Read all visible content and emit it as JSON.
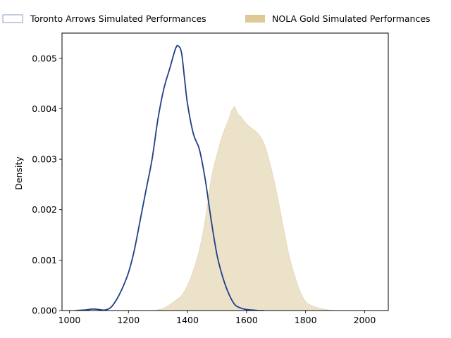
{
  "chart_data": {
    "type": "area",
    "xlabel": "",
    "ylabel": "Density",
    "xlim": [
      975,
      2080
    ],
    "ylim": [
      0,
      0.0055
    ],
    "xticks": [
      1000,
      1200,
      1400,
      1600,
      1800,
      2000
    ],
    "yticks": [
      0.0,
      0.001,
      0.002,
      0.003,
      0.004,
      0.005
    ],
    "ytick_labels": [
      "0.000",
      "0.001",
      "0.002",
      "0.003",
      "0.004",
      "0.005"
    ],
    "grid": false,
    "legend_position": "top",
    "series": [
      {
        "name": "Toronto Arrows Simulated Performances",
        "style": "line",
        "color": "#1f3f86",
        "legend_swatch_edge": "#8a9ac4",
        "x": [
          1020,
          1050,
          1080,
          1100,
          1120,
          1140,
          1160,
          1180,
          1200,
          1220,
          1240,
          1260,
          1280,
          1300,
          1320,
          1340,
          1360,
          1370,
          1380,
          1390,
          1400,
          1420,
          1440,
          1460,
          1480,
          1500,
          1520,
          1540,
          1560,
          1580,
          1600,
          1620,
          1640,
          1660
        ],
        "y": [
          0.0,
          1e-05,
          3e-05,
          2e-05,
          1e-05,
          6e-05,
          0.00022,
          0.00045,
          0.00075,
          0.0012,
          0.0018,
          0.0024,
          0.003,
          0.0038,
          0.0044,
          0.0048,
          0.0052,
          0.00524,
          0.0051,
          0.0046,
          0.0041,
          0.0035,
          0.0032,
          0.0026,
          0.0018,
          0.0011,
          0.00065,
          0.00033,
          0.00012,
          5e-05,
          2e-05,
          1e-05,
          0.0,
          0.0
        ]
      },
      {
        "name": "NOLA Gold Simulated Performances",
        "style": "area",
        "color": "#c9ab66",
        "fill_opacity": 0.35,
        "legend_swatch_fill": "#ddc896",
        "x": [
          1290,
          1320,
          1340,
          1360,
          1380,
          1400,
          1420,
          1440,
          1460,
          1480,
          1500,
          1520,
          1540,
          1550,
          1560,
          1570,
          1580,
          1600,
          1620,
          1640,
          1660,
          1680,
          1700,
          1720,
          1740,
          1760,
          1780,
          1800,
          1820,
          1840,
          1860,
          1880,
          1900
        ],
        "y": [
          0.0,
          5e-05,
          0.00012,
          0.0002,
          0.0003,
          0.0005,
          0.0008,
          0.0012,
          0.0018,
          0.0026,
          0.0031,
          0.0035,
          0.0038,
          0.00397,
          0.00404,
          0.0039,
          0.00385,
          0.0037,
          0.0036,
          0.0035,
          0.0033,
          0.0029,
          0.0024,
          0.0018,
          0.0012,
          0.00075,
          0.0004,
          0.00018,
          0.0001,
          6e-05,
          3e-05,
          1e-05,
          0.0
        ]
      }
    ]
  }
}
